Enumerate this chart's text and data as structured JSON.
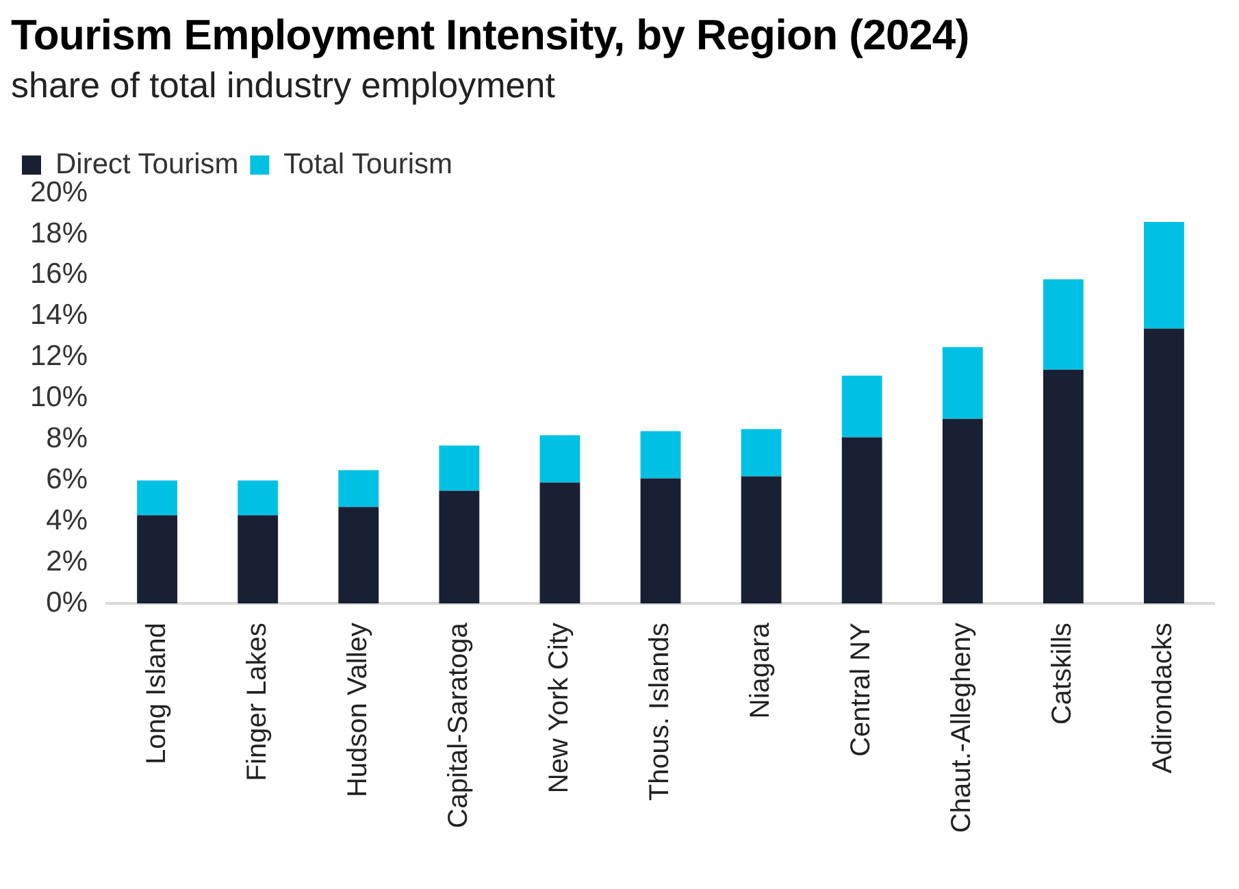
{
  "chart_data": {
    "type": "bar",
    "title": "Tourism Employment Intensity, by Region (2024)",
    "subtitle": "share of total industry employment",
    "categories": [
      "Long Island",
      "Finger Lakes",
      "Hudson Valley",
      "Capital-Saratoga",
      "New York City",
      "Thous. Islands",
      "Niagara",
      "Central NY",
      "Chaut.-Allegheny",
      "Catskills",
      "Adirondacks"
    ],
    "series": [
      {
        "name": "Direct Tourism",
        "color": "#1a2033",
        "values": [
          4.3,
          4.3,
          4.7,
          5.5,
          5.9,
          6.1,
          6.2,
          8.1,
          9.0,
          11.4,
          13.4
        ]
      },
      {
        "name": "Total Tourism",
        "color": "#00c1e3",
        "values": [
          1.7,
          1.7,
          1.8,
          2.2,
          2.3,
          2.3,
          2.3,
          3.0,
          3.5,
          4.4,
          5.2
        ]
      }
    ],
    "stacked": true,
    "ylim": [
      0,
      20
    ],
    "yticks": [
      {
        "value": 0,
        "label": "0%"
      },
      {
        "value": 2,
        "label": "2%"
      },
      {
        "value": 4,
        "label": "4%"
      },
      {
        "value": 6,
        "label": "6%"
      },
      {
        "value": 8,
        "label": "8%"
      },
      {
        "value": 10,
        "label": "10%"
      },
      {
        "value": 12,
        "label": "12%"
      },
      {
        "value": 14,
        "label": "14%"
      },
      {
        "value": 16,
        "label": "16%"
      },
      {
        "value": 18,
        "label": "18%"
      },
      {
        "value": 20,
        "label": "20%"
      }
    ],
    "grid": false,
    "legend": "top left"
  }
}
